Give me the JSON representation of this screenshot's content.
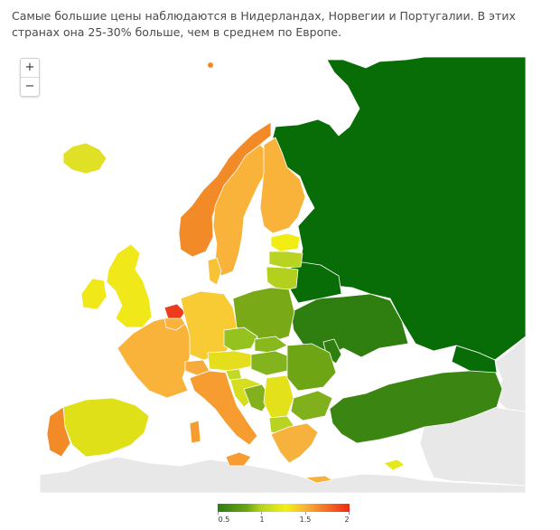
{
  "description": "Самые большие цены наблюдаются в Нидерландах, Норвегии и Португалии. В этих странах она 25-30% больше, чем в среднем по Европе.",
  "zoom": {
    "in_label": "+",
    "out_label": "−"
  },
  "legend": {
    "labels": [
      "0.5",
      "1",
      "1.5",
      "2"
    ],
    "min": 0.5,
    "max": 2,
    "colors": [
      "#2f7d14",
      "#b5d423",
      "#f4ef18",
      "#f47a25",
      "#ee2a18"
    ]
  },
  "map_data": {
    "type": "choropleth",
    "region": "Europe",
    "colors": {
      "no_data": "#e8e8e8",
      "sea": "#ffffff",
      "border": "#ffffff"
    }
  }
}
